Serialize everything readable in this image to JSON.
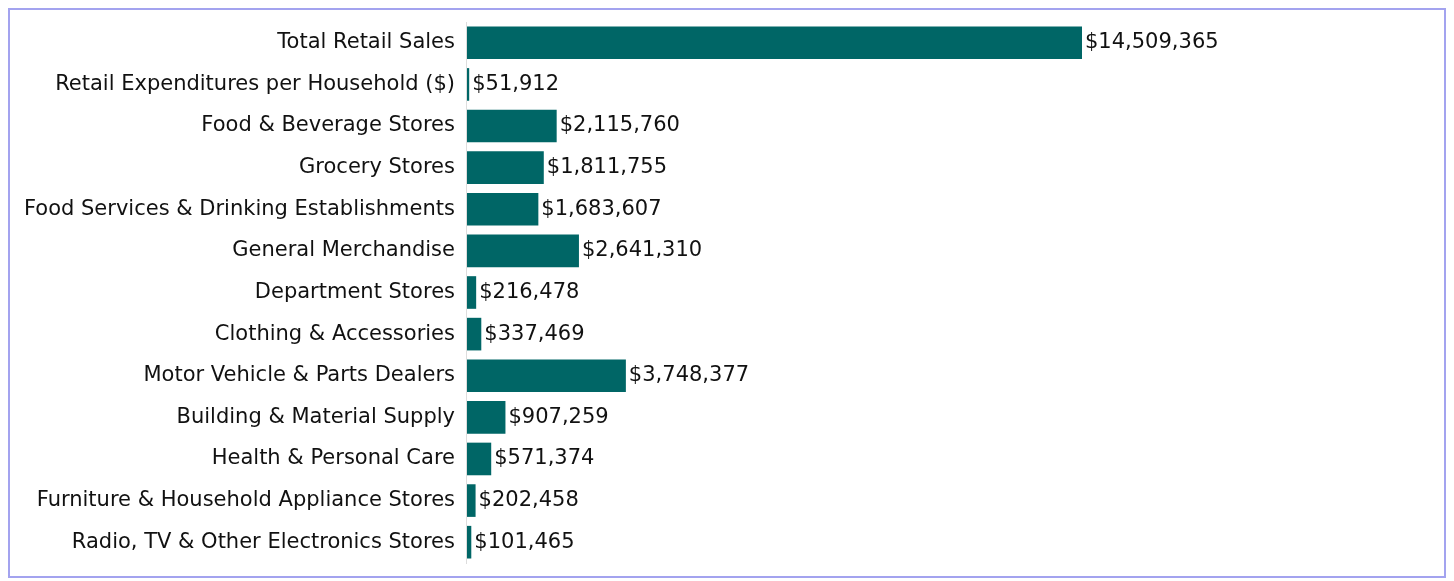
{
  "chart_data": {
    "type": "bar",
    "orientation": "horizontal",
    "legend": false,
    "categories": [
      "Total Retail Sales",
      "Retail Expenditures per Household ($)",
      "Food & Beverage Stores",
      "Grocery Stores",
      "Food Services & Drinking Establishments",
      "General Merchandise",
      "Department Stores",
      "Clothing & Accessories",
      "Motor Vehicle & Parts Dealers",
      "Building & Material Supply",
      "Health & Personal Care",
      "Furniture & Household Appliance Stores",
      "Radio, TV & Other Electronics Stores"
    ],
    "values": [
      14509365,
      51912,
      2115760,
      1811755,
      1683607,
      2641310,
      216478,
      337469,
      3748377,
      907259,
      571374,
      202458,
      101465
    ],
    "value_labels": [
      "$14,509,365",
      "$51,912",
      "$2,115,760",
      "$1,811,755",
      "$1,683,607",
      "$2,641,310",
      "$216,478",
      "$337,469",
      "$3,748,377",
      "$907,259",
      "$571,374",
      "$202,458",
      "$101,465"
    ],
    "color": "#006666"
  }
}
